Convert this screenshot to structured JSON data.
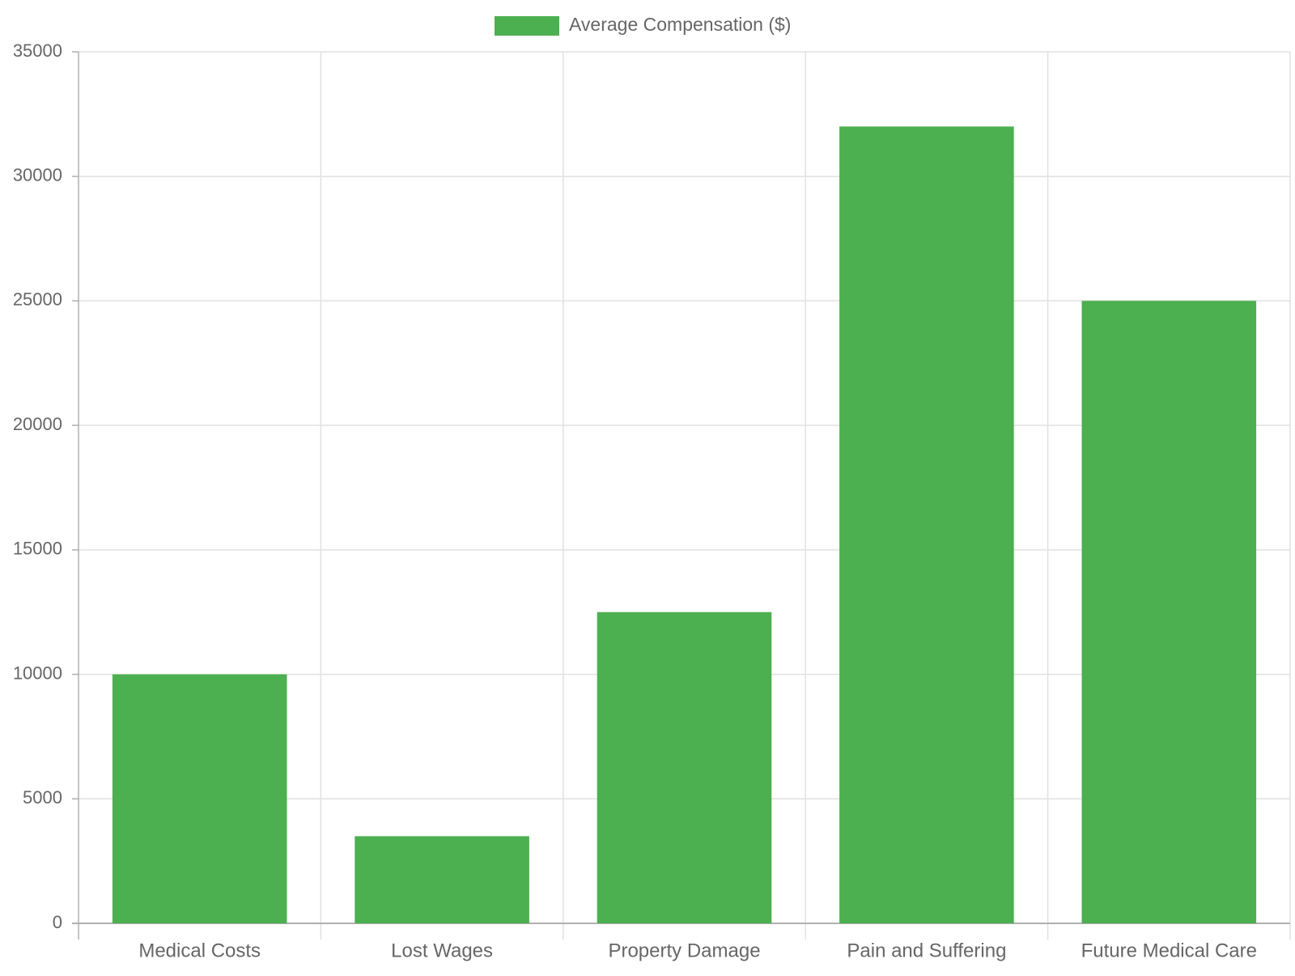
{
  "chart_data": {
    "type": "bar",
    "categories": [
      "Medical Costs",
      "Lost Wages",
      "Property Damage",
      "Pain and Suffering",
      "Future Medical Care"
    ],
    "series": [
      {
        "name": "Average Compensation ($)",
        "values": [
          10000,
          3500,
          12500,
          32000,
          25000
        ],
        "color": "#4caf50"
      }
    ],
    "ylim": [
      0,
      35000
    ],
    "yticks": [
      0,
      5000,
      10000,
      15000,
      20000,
      25000,
      30000,
      35000
    ],
    "grid": true,
    "legend_position": "top-center"
  },
  "legend": {
    "label": "Average Compensation ($)"
  }
}
